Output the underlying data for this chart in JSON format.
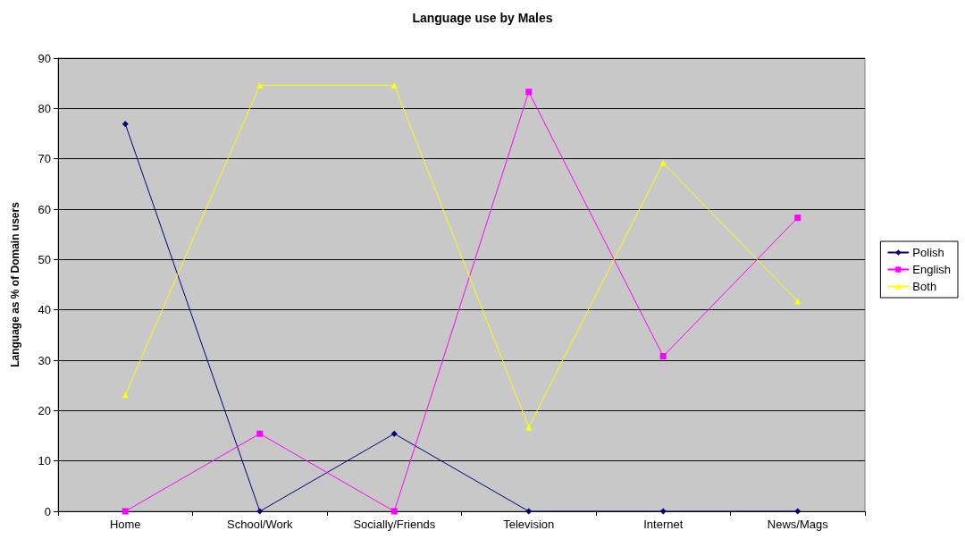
{
  "chart_data": {
    "type": "line",
    "title": "Language use by Males",
    "ylabel": "Language as % of Domain users",
    "categories": [
      "Home",
      "School/Work",
      "Socially/Friends",
      "Television",
      "Internet",
      "News/Mags"
    ],
    "series": [
      {
        "name": "Polish",
        "color": "#000080",
        "marker": "diamond",
        "values": [
          76.9,
          0,
          15.4,
          0,
          0,
          0
        ]
      },
      {
        "name": "English",
        "color": "#ff00ff",
        "marker": "square",
        "values": [
          0,
          15.4,
          0,
          83.3,
          30.8,
          58.3
        ]
      },
      {
        "name": "Both",
        "color": "#ffff00",
        "marker": "triangle",
        "values": [
          23.1,
          84.6,
          84.6,
          16.7,
          69.2,
          41.7
        ]
      }
    ],
    "ylim": [
      0,
      90
    ],
    "yticks": [
      0,
      10,
      20,
      30,
      40,
      50,
      60,
      70,
      80,
      90
    ],
    "grid": "y",
    "legend": "right"
  }
}
